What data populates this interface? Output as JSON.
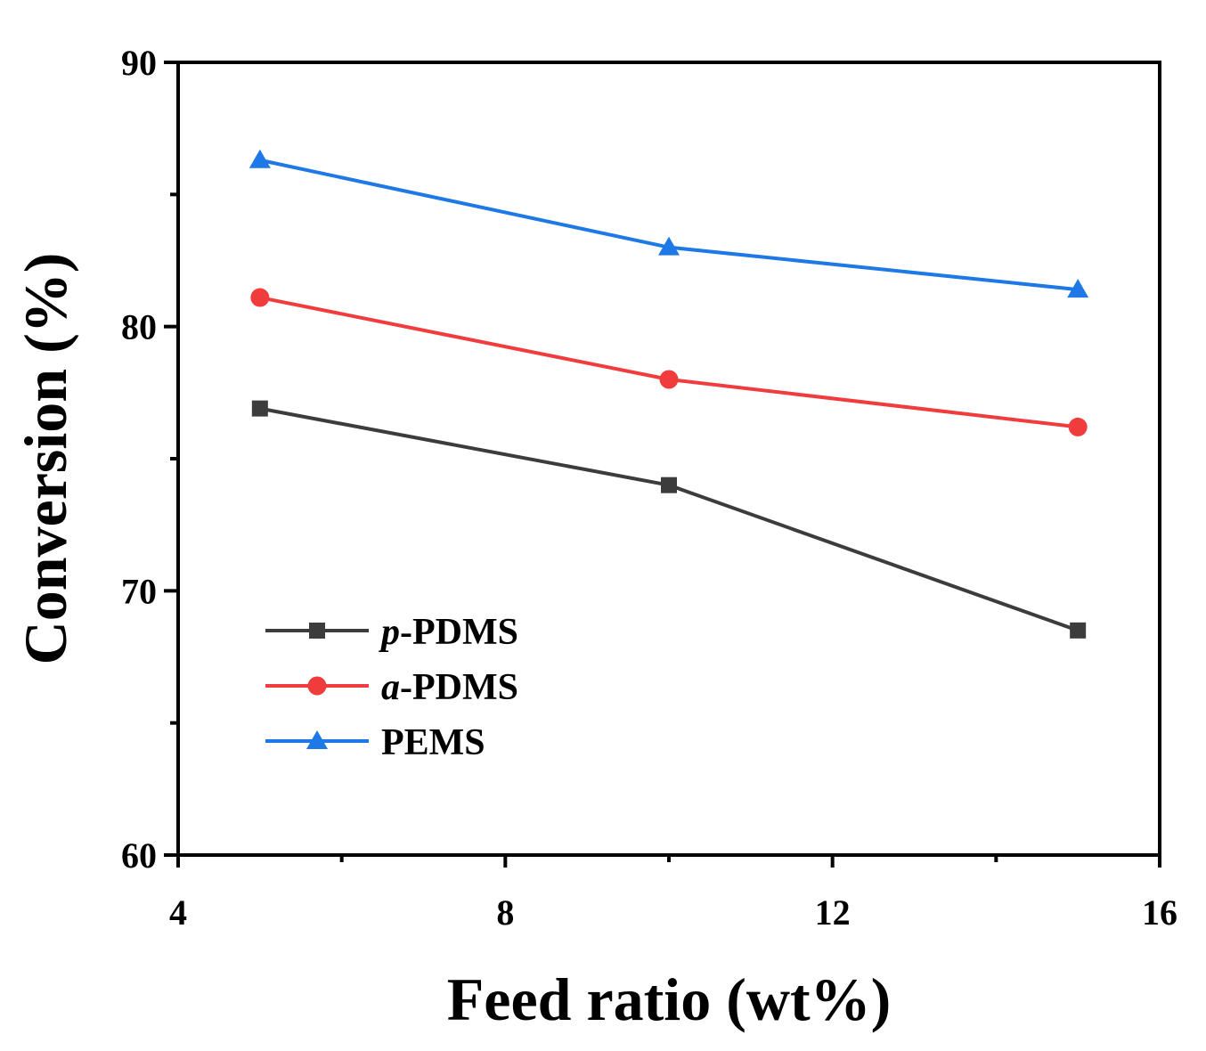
{
  "chart_data": {
    "type": "line",
    "title": "",
    "xlabel": "Feed ratio (wt%)",
    "ylabel": "Conversion (%)",
    "xlim": [
      4,
      16
    ],
    "ylim": [
      60,
      90
    ],
    "xticks": [
      4,
      8,
      12,
      16
    ],
    "yticks": [
      60,
      70,
      80,
      90
    ],
    "x_minor_ticks": [
      6,
      10,
      14
    ],
    "y_minor_ticks": [
      65,
      75,
      85
    ],
    "grid": false,
    "legend_position": "lower-left",
    "series": [
      {
        "name": "p-PDMS",
        "name_prefix": "p",
        "name_suffix": "-PDMS",
        "marker": "square",
        "color": "#3c3c3c",
        "x": [
          5,
          10,
          15
        ],
        "values": [
          76.9,
          74.0,
          68.5
        ]
      },
      {
        "name": "a-PDMS",
        "name_prefix": "a",
        "name_suffix": "-PDMS",
        "marker": "circle",
        "color": "#f03c3c",
        "x": [
          5,
          10,
          15
        ],
        "values": [
          81.1,
          78.0,
          76.2
        ]
      },
      {
        "name": "PEMS",
        "name_prefix": "",
        "name_suffix": "PEMS",
        "marker": "triangle",
        "color": "#1e78e6",
        "x": [
          5,
          10,
          15
        ],
        "values": [
          86.3,
          83.0,
          81.4
        ]
      }
    ]
  }
}
